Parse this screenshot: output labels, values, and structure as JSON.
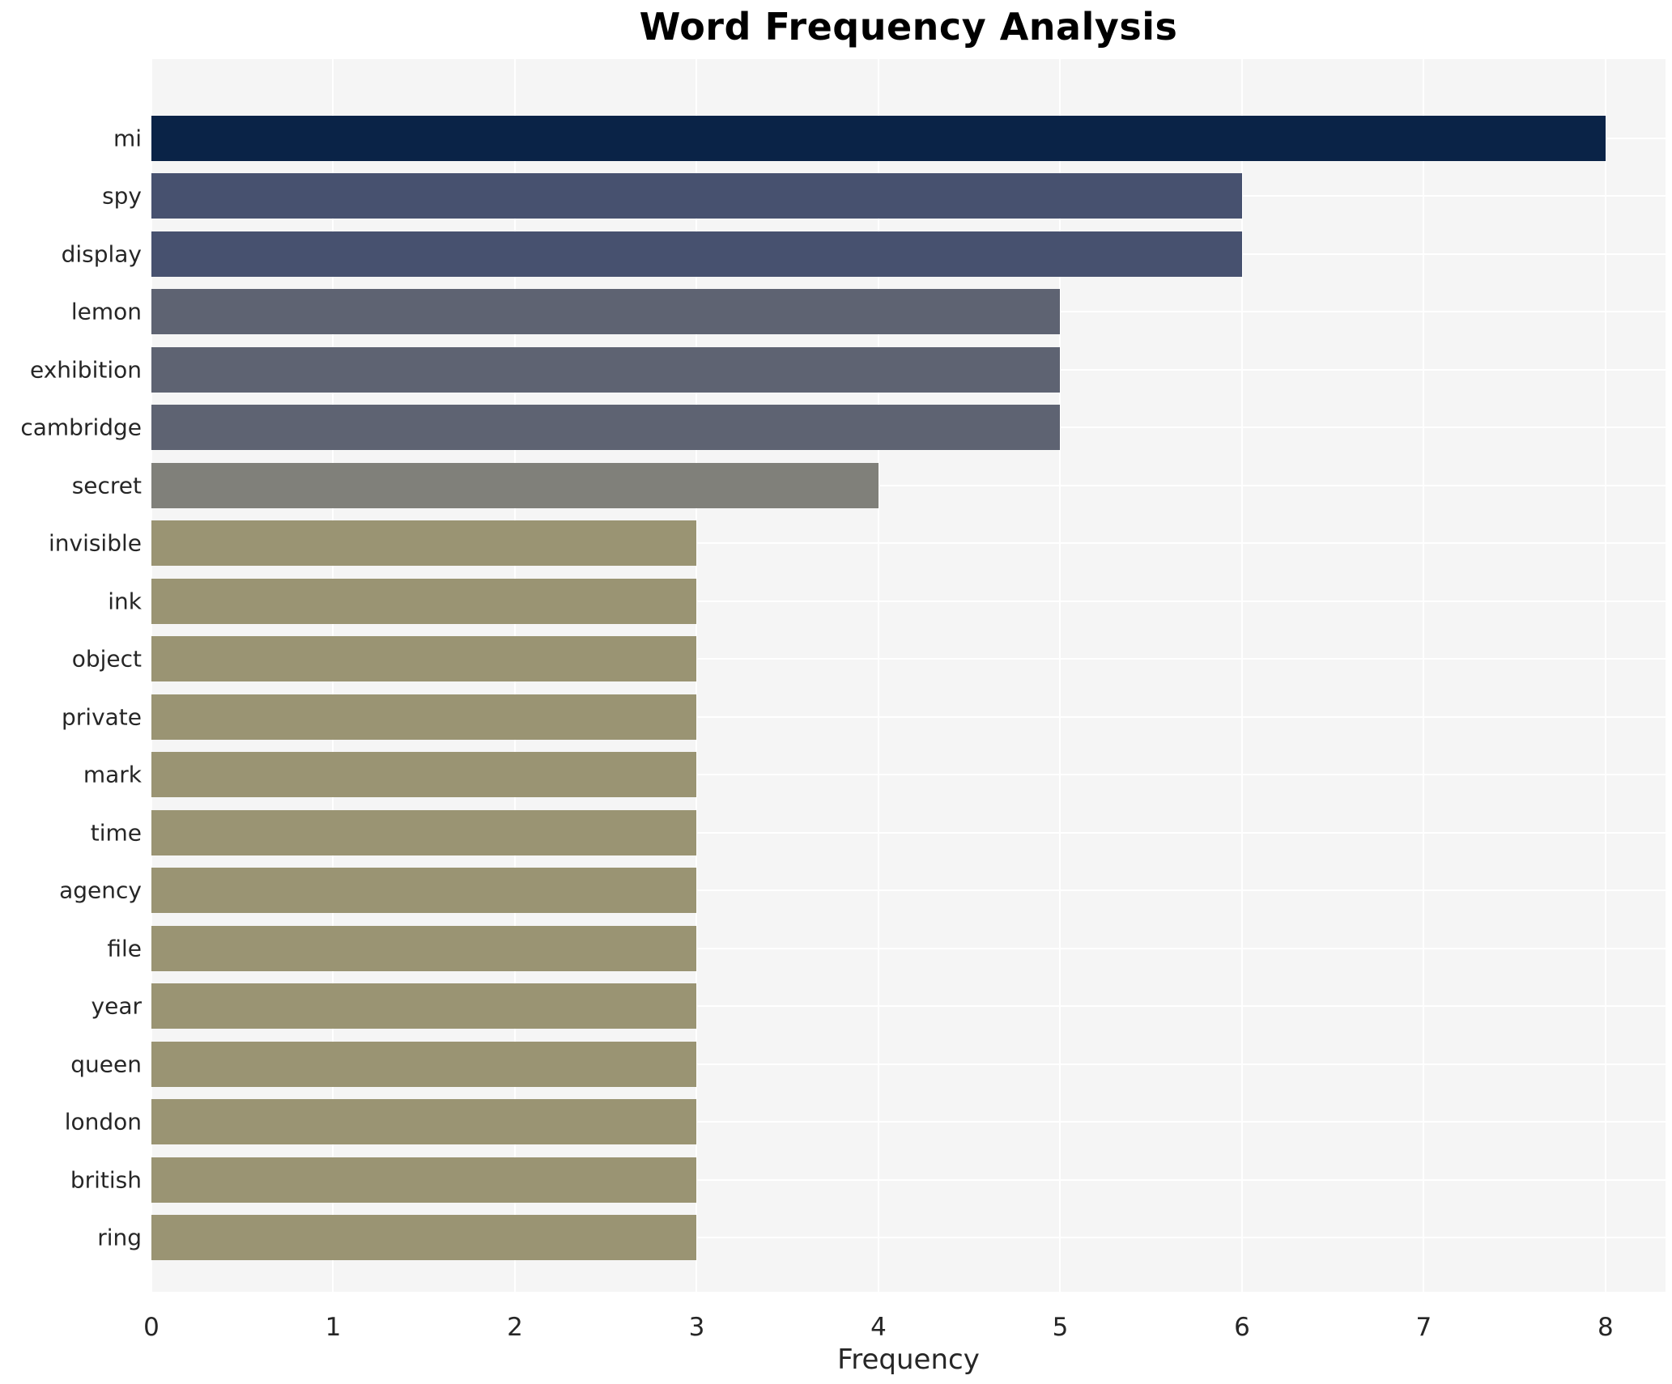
{
  "chart_data": {
    "type": "bar",
    "orientation": "horizontal",
    "title": "Word Frequency Analysis",
    "xlabel": "Frequency",
    "ylabel": "",
    "xlim": [
      0,
      8.33
    ],
    "xticks": [
      0,
      1,
      2,
      3,
      4,
      5,
      6,
      7,
      8
    ],
    "grid": true,
    "legend_position": "none",
    "plot_background": "#f5f5f5",
    "grid_color": "#ffffff",
    "tick_text_color": "#262626",
    "title_color": "#000000",
    "categories": [
      "mi",
      "spy",
      "display",
      "lemon",
      "exhibition",
      "cambridge",
      "secret",
      "invisible",
      "ink",
      "object",
      "private",
      "mark",
      "time",
      "agency",
      "file",
      "year",
      "queen",
      "london",
      "british",
      "ring"
    ],
    "values": [
      8,
      6,
      6,
      5,
      5,
      5,
      4,
      3,
      3,
      3,
      3,
      3,
      3,
      3,
      3,
      3,
      3,
      3,
      3,
      3
    ],
    "bar_colors": [
      "#0a2347",
      "#47516f",
      "#47516f",
      "#5e6372",
      "#5e6372",
      "#5e6372",
      "#80807a",
      "#9a9473",
      "#9a9473",
      "#9a9473",
      "#9a9473",
      "#9a9473",
      "#9a9473",
      "#9a9473",
      "#9a9473",
      "#9a9473",
      "#9a9473",
      "#9a9473",
      "#9a9473",
      "#9a9473"
    ]
  }
}
